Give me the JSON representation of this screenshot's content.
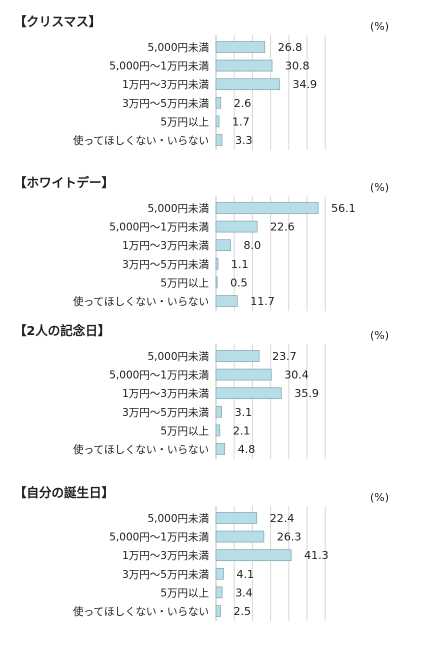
{
  "chart_data": [
    {
      "type": "bar",
      "orientation": "horizontal",
      "title": "【クリスマス】",
      "unit_label": "(%)",
      "categories": [
        "5,000円未満",
        "5,000円～1万円未満",
        "1万円～3万円未満",
        "3万円～5万円未満",
        "5万円以上",
        "使ってほしくない・いらない"
      ],
      "values": [
        26.8,
        30.8,
        34.9,
        2.6,
        1.7,
        3.3
      ],
      "value_labels": [
        "26.8",
        "30.8",
        "34.9",
        "2.6",
        "1.7",
        "3.3"
      ],
      "xlim": [
        0,
        60
      ],
      "grid": true
    },
    {
      "type": "bar",
      "orientation": "horizontal",
      "title": "【ホワイトデー】",
      "unit_label": "(%)",
      "categories": [
        "5,000円未満",
        "5,000円～1万円未満",
        "1万円～3万円未満",
        "3万円～5万円未満",
        "5万円以上",
        "使ってほしくない・いらない"
      ],
      "values": [
        56.1,
        22.6,
        8.0,
        1.1,
        0.5,
        11.7
      ],
      "value_labels": [
        "56.1",
        "22.6",
        "8.0",
        "1.1",
        "0.5",
        "11.7"
      ],
      "xlim": [
        0,
        60
      ],
      "grid": true
    },
    {
      "type": "bar",
      "orientation": "horizontal",
      "title": "【2人の記念日】",
      "unit_label": "(%)",
      "categories": [
        "5,000円未満",
        "5,000円～1万円未満",
        "1万円～3万円未満",
        "3万円～5万円未満",
        "5万円以上",
        "使ってほしくない・いらない"
      ],
      "values": [
        23.7,
        30.4,
        35.9,
        3.1,
        2.1,
        4.8
      ],
      "value_labels": [
        "23.7",
        "30.4",
        "35.9",
        "3.1",
        "2.1",
        "4.8"
      ],
      "xlim": [
        0,
        60
      ],
      "grid": true
    },
    {
      "type": "bar",
      "orientation": "horizontal",
      "title": "【自分の誕生日】",
      "unit_label": "(%)",
      "categories": [
        "5,000円未満",
        "5,000円～1万円未満",
        "1万円～3万円未満",
        "3万円～5万円未満",
        "5万円以上",
        "使ってほしくない・いらない"
      ],
      "values": [
        22.4,
        26.3,
        41.3,
        4.1,
        3.4,
        2.5
      ],
      "value_labels": [
        "22.4",
        "26.3",
        "41.3",
        "4.1",
        "3.4",
        "2.5"
      ],
      "xlim": [
        0,
        60
      ],
      "grid": true
    }
  ],
  "colors": {
    "bar_fill": "#b7dde6",
    "bar_stroke": "#7fa7b3",
    "grid": "#d9d9d9",
    "text": "#222222"
  }
}
